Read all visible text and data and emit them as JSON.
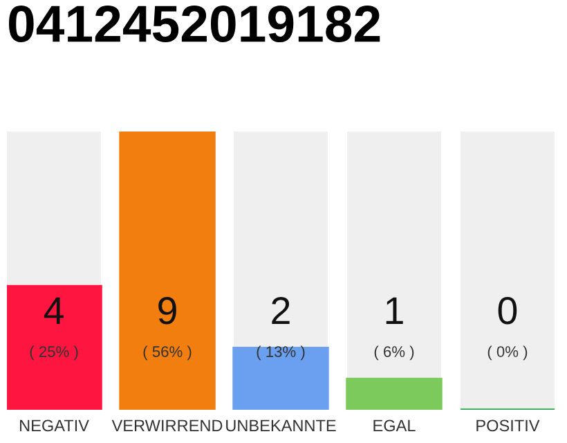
{
  "chart_data": {
    "type": "bar",
    "title": "0412452019182",
    "categories": [
      "NEGATIV",
      "VERWIRREND",
      "UNBEKANNTE",
      "EGAL",
      "POSITIV"
    ],
    "values": [
      4,
      9,
      2,
      1,
      0
    ],
    "colors": [
      "#ff1640",
      "#f27e0f",
      "#6aa0ef",
      "#7cc95c",
      "#27a84a"
    ],
    "ylim": [
      0,
      9
    ],
    "data_labels": true,
    "annotations": [
      "( 25% )",
      "( 56% )",
      "( 13% )",
      "( 6% )",
      "( 0% )"
    ],
    "grid": false,
    "legend": false
  }
}
